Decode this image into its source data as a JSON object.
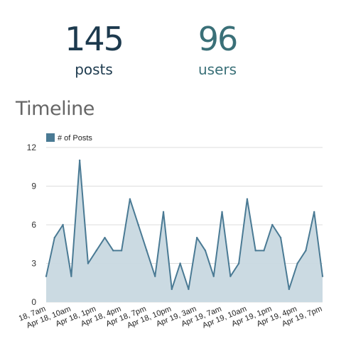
{
  "stats": {
    "posts": {
      "value": "145",
      "label": "posts"
    },
    "users": {
      "value": "96",
      "label": "users"
    }
  },
  "section": {
    "title": "Timeline"
  },
  "colors": {
    "line": "#4a7a94",
    "fill": "#c8d8e0",
    "legend_swatch": "#4a7a94",
    "grid": "#dddddd"
  },
  "chart_data": {
    "type": "area",
    "series": [
      {
        "name": "# of Posts",
        "values": [
          2,
          5,
          6,
          2,
          11,
          3,
          4,
          5,
          4,
          4,
          8,
          6,
          4,
          2,
          7,
          1,
          3,
          1,
          5,
          4,
          2,
          7,
          2,
          3,
          8,
          4,
          4,
          6,
          5,
          1,
          3,
          4,
          7,
          2
        ]
      }
    ],
    "x_tick_labels": [
      "18, 7am",
      "Apr 18, 10am",
      "Apr 18, 1pm",
      "Apr 18, 4pm",
      "Apr 18, 7pm",
      "Apr 18, 10pm",
      "Apr 19, 3am",
      "Apr 19, 7am",
      "Apr 19, 10am",
      "Apr 19, 1pm",
      "Apr 19, 4pm",
      "Apr 19, 7pm"
    ],
    "y_ticks": [
      0,
      3,
      6,
      9,
      12
    ],
    "ylim": [
      0,
      12
    ],
    "grid": true,
    "legend_position": "top-left"
  }
}
